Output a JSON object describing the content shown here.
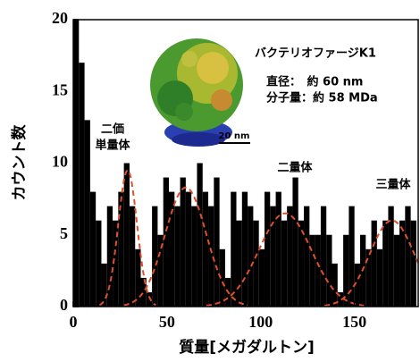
{
  "chart_data": {
    "type": "histogram",
    "y_label": "カウント数",
    "x_label": "質量[メガダルトン]",
    "bins": [
      0,
      3,
      6,
      9,
      12,
      15,
      18,
      21,
      24,
      27,
      30,
      33,
      36,
      39,
      42,
      45,
      48,
      51,
      54,
      57,
      60,
      63,
      66,
      69,
      72,
      75,
      78,
      81,
      84,
      87,
      90,
      93,
      96,
      99,
      102,
      105,
      108,
      111,
      114,
      117,
      120,
      123,
      126,
      129,
      132,
      135,
      138,
      141,
      144,
      147,
      150,
      153,
      156,
      159,
      162,
      165,
      168,
      171,
      174,
      177,
      180,
      183
    ],
    "values": [
      20,
      17,
      13,
      8,
      6,
      3,
      7,
      6,
      8,
      10,
      7,
      4,
      2,
      1,
      7,
      5,
      9,
      8,
      7,
      9,
      8,
      7,
      10,
      8,
      7,
      9,
      4,
      2,
      8,
      6,
      8,
      7,
      6,
      4,
      8,
      7,
      8,
      6,
      7,
      9,
      6,
      7,
      5,
      5,
      7,
      5,
      3,
      1,
      5,
      7,
      3,
      5,
      4,
      6,
      4,
      6,
      7,
      5,
      6,
      7,
      6
    ],
    "color": "#000000",
    "fits": [
      {
        "mean": 29,
        "sigma": 5,
        "peak": 9.5
      },
      {
        "mean": 60,
        "sigma": 11,
        "peak": 8.3
      },
      {
        "mean": 113,
        "sigma": 14,
        "peak": 6.5
      },
      {
        "mean": 170,
        "sigma": 12,
        "peak": 6
      }
    ],
    "fit_color": "#e0502a",
    "xlim": [
      0,
      184
    ],
    "ylim": [
      0,
      20
    ],
    "xticks": [
      0,
      50,
      100,
      150
    ],
    "yticks": [
      0,
      5,
      10,
      15,
      20
    ],
    "annotations": [
      "二価",
      "単量体",
      "二量体",
      "三量体"
    ],
    "inset": {
      "title": "バクテリオファージK1",
      "line1": "直径：　約 60 nm",
      "line2": "分子量：約 58 MDa",
      "scale_bar": "20 nm"
    }
  }
}
